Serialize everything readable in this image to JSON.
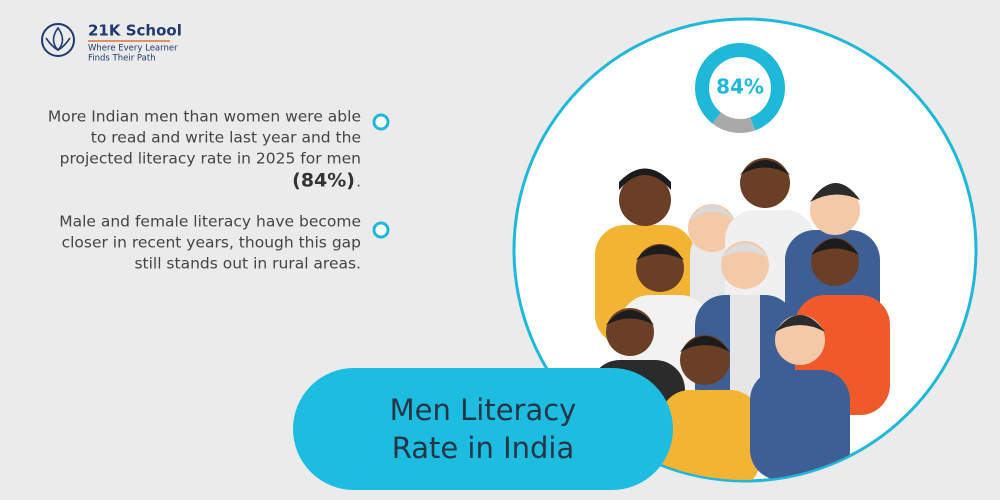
{
  "logo": {
    "name": "21K School",
    "tagline": [
      "Where Every Learner",
      "Finds Their Path"
    ]
  },
  "bullets": [
    {
      "lines": [
        "More Indian men than women were able",
        "to read and write last year and the",
        "projected literacy rate in 2025 for men"
      ],
      "highlight": "(84%)",
      "end": "."
    },
    {
      "lines": [
        "Male and female literacy have become",
        "closer in recent years, though this gap",
        "still stands out in rural areas."
      ]
    }
  ],
  "donut": {
    "value": 84,
    "label": "84%",
    "range": [
      0,
      100
    ]
  },
  "title": [
    "Men Literacy",
    "Rate in India"
  ]
}
